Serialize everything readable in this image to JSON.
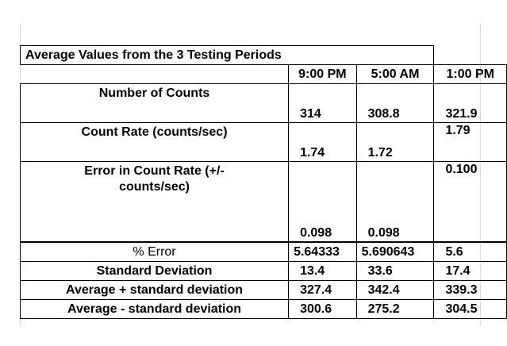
{
  "table": {
    "title": "Average Values from the 3 Testing Periods",
    "columns": [
      "9:00 PM",
      "5:00 AM",
      "1:00 PM"
    ],
    "rows": [
      {
        "label": "Number of Counts",
        "values": [
          "314",
          "308.8",
          "321.9"
        ]
      },
      {
        "label": "Count Rate (counts/sec)",
        "values": [
          "1.74",
          "1.72",
          "1.79"
        ]
      },
      {
        "label": "Error in Count Rate (+/- counts/sec)",
        "values": [
          "0.098",
          "0.098",
          "0.100"
        ]
      },
      {
        "label": "% Error",
        "values": [
          "5.64333",
          "5.690643",
          "5.6"
        ]
      },
      {
        "label": "Standard Deviation",
        "values": [
          "13.4",
          "33.6",
          "17.4"
        ]
      },
      {
        "label": "Average + standard deviation",
        "values": [
          "327.4",
          "342.4",
          "339.3"
        ]
      },
      {
        "label": "Average - standard deviation",
        "values": [
          "300.6",
          "275.2",
          "304.5"
        ]
      }
    ]
  }
}
